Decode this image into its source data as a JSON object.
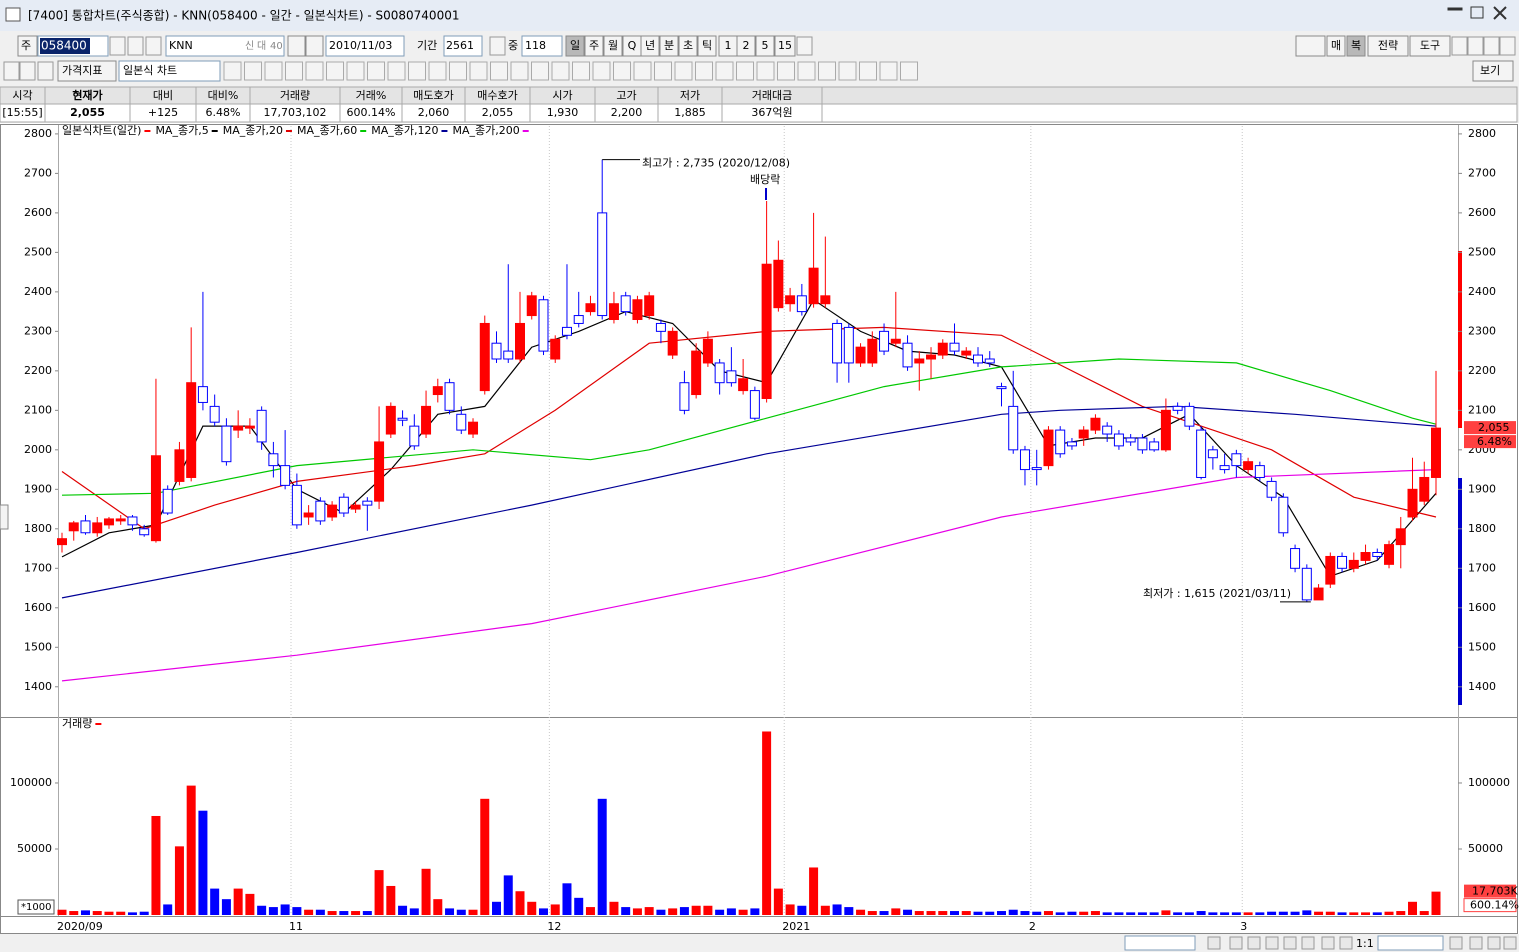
{
  "window": {
    "title": "[7400] 통합차트(주식종합) - KNN(058400 - 일간 - 일본식차트) - S0080740001"
  },
  "toolbar": {
    "market": "주",
    "code": "058400",
    "name": "KNN",
    "badges": [
      "신",
      "대",
      "40"
    ],
    "date": "2010/11/03",
    "period_label": "기간",
    "period": "2561",
    "count_label": "중",
    "count": "118",
    "periods": [
      "일",
      "주",
      "월",
      "Q",
      "년",
      "분",
      "초",
      "틱",
      "1",
      "2",
      "5",
      "15"
    ],
    "right_buttons": [
      "매",
      "복",
      "전략",
      "도구"
    ],
    "indicator": "가격지표",
    "chart_kind": "일본식 차트",
    "view": "보기"
  },
  "quote_table": {
    "headers": [
      "시각",
      "현재가",
      "대비",
      "대비%",
      "거래량",
      "거래%",
      "매도호가",
      "매수호가",
      "시가",
      "고가",
      "저가",
      "거래대금"
    ],
    "values": [
      "[15:55]",
      "2,055",
      "+125",
      "6.48%",
      "17,703,102",
      "600.14%",
      "2,060",
      "2,055",
      "1,930",
      "2,200",
      "1,885",
      "367억원"
    ]
  },
  "footer": {
    "zoom": "1:1"
  },
  "chart_data": [
    {
      "type": "candlestick",
      "legend_title": "일본식차트(일간)",
      "up_color": "#ff0000",
      "down_color": "#0000ff",
      "grid": "x",
      "categories": [
        "2020/09",
        null,
        null,
        null,
        null,
        null,
        null,
        null,
        null,
        null,
        null,
        null,
        null,
        null,
        null,
        null,
        null,
        null,
        null,
        "11",
        null,
        null,
        null,
        null,
        null,
        null,
        null,
        null,
        null,
        null,
        null,
        null,
        null,
        null,
        null,
        null,
        null,
        null,
        null,
        null,
        null,
        "12",
        null,
        null,
        null,
        null,
        null,
        null,
        null,
        null,
        null,
        null,
        null,
        null,
        null,
        null,
        null,
        null,
        null,
        null,
        null,
        "2021",
        null,
        null,
        null,
        null,
        null,
        null,
        null,
        null,
        null,
        null,
        null,
        null,
        null,
        null,
        null,
        null,
        null,
        null,
        null,
        null,
        "2",
        null,
        null,
        null,
        null,
        null,
        null,
        null,
        null,
        null,
        null,
        null,
        null,
        null,
        null,
        null,
        null,
        null,
        "3",
        null,
        null,
        null,
        null,
        null,
        null,
        null,
        null,
        null,
        null,
        null,
        null,
        null,
        null,
        null,
        null,
        null
      ],
      "open": [
        1760,
        1795,
        1820,
        1790,
        1810,
        1820,
        1830,
        1800,
        1770,
        1900,
        1920,
        1930,
        2160,
        2110,
        2060,
        2050,
        2055,
        2100,
        1990,
        1960,
        1910,
        1830,
        1870,
        1830,
        1880,
        1850,
        1870,
        1870,
        2040,
        2080,
        2060,
        2040,
        2140,
        2170,
        2090,
        2040,
        2150,
        2270,
        2250,
        2230,
        2340,
        2380,
        2230,
        2310,
        2340,
        2350,
        2600,
        2330,
        2390,
        2330,
        2340,
        2320,
        2240,
        2170,
        2140,
        2220,
        2220,
        2200,
        2150,
        2150,
        2130,
        2360,
        2370,
        2390,
        2370,
        2370,
        2320,
        2310,
        2220,
        2220,
        2300,
        2270,
        2270,
        2220,
        2230,
        2240,
        2270,
        2240,
        2240,
        2230,
        2160,
        2110,
        2000,
        1955,
        1960,
        2050,
        2020,
        2030,
        2050,
        2060,
        2040,
        2030,
        2030,
        2020,
        2000,
        2110,
        2110,
        2050,
        2000,
        1960,
        1990,
        1950,
        1960,
        1920,
        1880,
        1750,
        1700,
        1620,
        1660,
        1730,
        1700,
        1720,
        1740,
        1710,
        1760,
        1830,
        1870,
        1930
      ],
      "high": [
        1790,
        1820,
        1835,
        1830,
        1830,
        1835,
        1835,
        1810,
        2180,
        1910,
        2020,
        2310,
        2400,
        2140,
        2080,
        2100,
        2080,
        2110,
        2020,
        2050,
        1940,
        1860,
        1880,
        1870,
        1890,
        1870,
        1880,
        2110,
        2120,
        2100,
        2090,
        2150,
        2180,
        2180,
        2110,
        2080,
        2340,
        2300,
        2470,
        2400,
        2400,
        2390,
        2290,
        2470,
        2400,
        2390,
        2735,
        2400,
        2400,
        2390,
        2400,
        2330,
        2310,
        2200,
        2270,
        2300,
        2230,
        2260,
        2230,
        2160,
        2630,
        2530,
        2410,
        2420,
        2600,
        2540,
        2330,
        2320,
        2270,
        2300,
        2320,
        2400,
        2290,
        2250,
        2260,
        2280,
        2320,
        2260,
        2260,
        2250,
        2170,
        2200,
        2010,
        2000,
        2060,
        2060,
        2030,
        2060,
        2090,
        2070,
        2050,
        2040,
        2040,
        2030,
        2130,
        2120,
        2120,
        2060,
        2010,
        1990,
        2000,
        1980,
        1970,
        1930,
        1890,
        1760,
        1710,
        1660,
        1740,
        1740,
        1740,
        1760,
        1750,
        1770,
        1830,
        1980,
        1970,
        2200
      ],
      "low": [
        1740,
        1770,
        1785,
        1780,
        1800,
        1810,
        1795,
        1780,
        1765,
        1835,
        1910,
        1920,
        2100,
        2060,
        1960,
        2030,
        2040,
        2000,
        1930,
        1900,
        1800,
        1810,
        1810,
        1820,
        1830,
        1840,
        1795,
        1850,
        2030,
        2060,
        2000,
        2030,
        2120,
        2090,
        2040,
        2030,
        2140,
        2220,
        2220,
        2220,
        2330,
        2240,
        2220,
        2280,
        2310,
        2340,
        2330,
        2320,
        2340,
        2320,
        2330,
        2270,
        2230,
        2090,
        2130,
        2210,
        2140,
        2160,
        2140,
        2075,
        2120,
        2350,
        2350,
        2340,
        2360,
        2360,
        2170,
        2170,
        2210,
        2210,
        2240,
        2260,
        2200,
        2150,
        2180,
        2230,
        2240,
        2230,
        2210,
        2210,
        2110,
        1990,
        1910,
        1910,
        1950,
        1980,
        2000,
        2010,
        2040,
        2020,
        2000,
        2010,
        1990,
        1995,
        1995,
        2090,
        2050,
        1925,
        1950,
        1940,
        1930,
        1940,
        1920,
        1870,
        1780,
        1690,
        1615,
        1620,
        1650,
        1690,
        1690,
        1710,
        1720,
        1700,
        1700,
        1820,
        1860,
        1885
      ],
      "close": [
        1775,
        1815,
        1790,
        1815,
        1825,
        1825,
        1810,
        1785,
        1985,
        1840,
        2000,
        2170,
        2120,
        2070,
        1970,
        2060,
        2060,
        2020,
        1960,
        1910,
        1810,
        1840,
        1820,
        1860,
        1840,
        1860,
        1860,
        2020,
        2110,
        2075,
        2010,
        2110,
        2160,
        2100,
        2050,
        2070,
        2320,
        2230,
        2230,
        2320,
        2390,
        2250,
        2280,
        2290,
        2320,
        2370,
        2340,
        2370,
        2350,
        2380,
        2390,
        2300,
        2300,
        2100,
        2250,
        2280,
        2170,
        2170,
        2180,
        2080,
        2470,
        2480,
        2390,
        2350,
        2460,
        2390,
        2220,
        2220,
        2260,
        2280,
        2250,
        2280,
        2210,
        2230,
        2240,
        2270,
        2250,
        2250,
        2220,
        2220,
        2155,
        2000,
        1950,
        1950,
        2050,
        1990,
        2010,
        2050,
        2080,
        2040,
        2010,
        2020,
        2000,
        2000,
        2100,
        2100,
        2060,
        1930,
        1980,
        1950,
        1960,
        1970,
        1930,
        1880,
        1790,
        1700,
        1620,
        1650,
        1730,
        1700,
        1720,
        1740,
        1730,
        1760,
        1800,
        1900,
        1930,
        2055
      ],
      "series": [
        {
          "name": "MA_종가,5",
          "color": "#000000",
          "x": [
            0,
            4,
            8,
            12,
            16,
            20,
            24,
            28,
            32,
            36,
            40,
            44,
            48,
            52,
            56,
            60,
            64,
            68,
            72,
            76,
            80,
            84,
            88,
            92,
            96,
            100,
            104,
            108,
            112,
            117
          ],
          "values": [
            1729,
            1790,
            1810,
            2060,
            2060,
            1900,
            1840,
            1950,
            2090,
            2110,
            2260,
            2300,
            2350,
            2320,
            2200,
            2170,
            2380,
            2300,
            2250,
            2240,
            2210,
            2010,
            2030,
            2030,
            2090,
            1960,
            1880,
            1680,
            1720,
            1890
          ]
        },
        {
          "name": "MA_종가,20",
          "color": "#e00000",
          "x": [
            0,
            7,
            13,
            20,
            30,
            36,
            42,
            50,
            60,
            70,
            80,
            84,
            92,
            98,
            103,
            110,
            117
          ],
          "values": [
            1945,
            1800,
            1860,
            1920,
            1960,
            1990,
            2100,
            2270,
            2300,
            2310,
            2290,
            2230,
            2110,
            2050,
            2000,
            1880,
            1830
          ]
        },
        {
          "name": "MA_종가,60",
          "color": "#00c800",
          "x": [
            0,
            8,
            20,
            35,
            45,
            50,
            60,
            70,
            80,
            90,
            100,
            108,
            115,
            117
          ],
          "values": [
            1885,
            1890,
            1960,
            2000,
            1975,
            2000,
            2080,
            2160,
            2210,
            2230,
            2220,
            2150,
            2080,
            2065
          ]
        },
        {
          "name": "MA_종가,120",
          "color": "#000096",
          "x": [
            0,
            20,
            40,
            60,
            80,
            85,
            95,
            105,
            117
          ],
          "values": [
            1625,
            1740,
            1860,
            1990,
            2090,
            2100,
            2110,
            2090,
            2060
          ]
        },
        {
          "name": "MA_종가,200",
          "color": "#e600e6",
          "x": [
            0,
            20,
            40,
            60,
            80,
            100,
            117
          ],
          "values": [
            1415,
            1480,
            1560,
            1680,
            1830,
            1930,
            1950
          ]
        }
      ],
      "ylim": [
        1326,
        2820
      ],
      "yticks": [
        1400,
        1500,
        1600,
        1700,
        1800,
        1900,
        2000,
        2100,
        2200,
        2300,
        2400,
        2500,
        2600,
        2700,
        2800
      ],
      "annotations": [
        {
          "label": "최고가 : 2,735 (2020/12/08)",
          "value": 2735
        },
        {
          "label": "최저가 : 1,615 (2021/03/11)",
          "value": 1615
        },
        {
          "label": "배당락"
        }
      ],
      "last_price_label": "2,055",
      "last_change_label": "6.48%"
    },
    {
      "type": "bar",
      "legend_title": "거래량",
      "color": "#ff0000",
      "values": [
        4000,
        3000,
        3500,
        3000,
        2500,
        2500,
        2000,
        2500,
        75000,
        8000,
        52000,
        98000,
        79000,
        20000,
        12000,
        20000,
        16000,
        7000,
        6000,
        8000,
        6000,
        4000,
        4000,
        3000,
        3000,
        3000,
        3000,
        34000,
        22000,
        7000,
        5000,
        35000,
        12000,
        5000,
        4000,
        4000,
        88000,
        10000,
        30000,
        18000,
        10000,
        5000,
        8000,
        24000,
        13000,
        6000,
        88000,
        10000,
        6000,
        5000,
        6000,
        4000,
        5000,
        6000,
        7000,
        7000,
        4000,
        5000,
        4000,
        5000,
        139000,
        20000,
        8000,
        7000,
        36000,
        7000,
        8000,
        6000,
        4000,
        3000,
        3000,
        5000,
        4000,
        3000,
        3000,
        3000,
        3000,
        3000,
        2500,
        2500,
        3000,
        4000,
        3000,
        2500,
        3000,
        2000,
        2500,
        2500,
        3000,
        2000,
        2000,
        2000,
        2000,
        2000,
        3500,
        2000,
        2000,
        3000,
        2000,
        2000,
        2000,
        2000,
        2000,
        2500,
        2500,
        2500,
        3500,
        2500,
        2500,
        2000,
        2000,
        2000,
        2000,
        2500,
        3000,
        10000,
        3000,
        17703
      ],
      "ylim": [
        0,
        147700
      ],
      "yticks": [
        50000,
        100000
      ],
      "unit_label": "*1000",
      "last_value_label": "17,703K",
      "last_change_label": "600.14%"
    }
  ]
}
